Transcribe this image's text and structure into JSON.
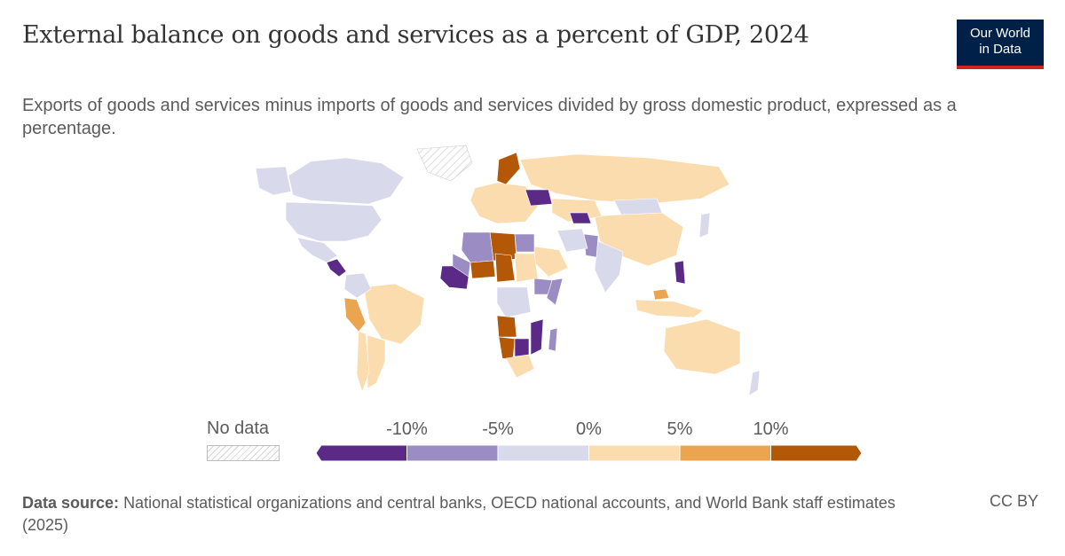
{
  "title": "External balance on goods and services as a percent of GDP, 2024",
  "subtitle": "Exports of goods and services minus imports of goods and services divided by gross domestic product, expressed as a percentage.",
  "logo": {
    "line1": "Our World",
    "line2": "in Data"
  },
  "legend": {
    "no_data_label": "No data",
    "tick_labels": [
      "-10%",
      "-5%",
      "0%",
      "5%",
      "10%"
    ],
    "bins": [
      {
        "range": "< -10%",
        "color": "#5b2a86"
      },
      {
        "range": "-10% to -5%",
        "color": "#9b8cc4"
      },
      {
        "range": "-5% to 0%",
        "color": "#d9d9ec"
      },
      {
        "range": "0% to 5%",
        "color": "#fbdcae"
      },
      {
        "range": "5% to 10%",
        "color": "#eba450"
      },
      {
        "range": "> 10%",
        "color": "#b35806"
      }
    ]
  },
  "footer": {
    "source_label": "Data source:",
    "source_text": "National statistical organizations and central banks, OECD national accounts, and World Bank staff estimates (2025)",
    "license": "CC BY"
  },
  "map_regions": [
    {
      "name": "Canada",
      "bin": 2
    },
    {
      "name": "United States",
      "bin": 2
    },
    {
      "name": "Alaska",
      "bin": 2
    },
    {
      "name": "Mexico",
      "bin": 2
    },
    {
      "name": "Central America",
      "bin": 0
    },
    {
      "name": "Brazil",
      "bin": 3
    },
    {
      "name": "Peru",
      "bin": 4
    },
    {
      "name": "Argentina",
      "bin": 3
    },
    {
      "name": "Chile",
      "bin": 3
    },
    {
      "name": "Colombia",
      "bin": 2
    },
    {
      "name": "Russia",
      "bin": 3
    },
    {
      "name": "China",
      "bin": 3
    },
    {
      "name": "Mongolia",
      "bin": 2
    },
    {
      "name": "Kazakhstan",
      "bin": 3
    },
    {
      "name": "Uzbekistan",
      "bin": 0
    },
    {
      "name": "India",
      "bin": 2
    },
    {
      "name": "Pakistan",
      "bin": 1
    },
    {
      "name": "Saudi Arabia",
      "bin": 3
    },
    {
      "name": "Iran",
      "bin": 2
    },
    {
      "name": "Egypt",
      "bin": 1
    },
    {
      "name": "Libya",
      "bin": 5
    },
    {
      "name": "Algeria",
      "bin": 1
    },
    {
      "name": "Niger",
      "bin": 5
    },
    {
      "name": "Chad",
      "bin": 5
    },
    {
      "name": "Sudan",
      "bin": 3
    },
    {
      "name": "Mali",
      "bin": 1
    },
    {
      "name": "West Africa",
      "bin": 0
    },
    {
      "name": "Ethiopia",
      "bin": 1
    },
    {
      "name": "Somalia",
      "bin": 1
    },
    {
      "name": "DR Congo",
      "bin": 2
    },
    {
      "name": "Angola",
      "bin": 5
    },
    {
      "name": "Namibia",
      "bin": 5
    },
    {
      "name": "Botswana",
      "bin": 0
    },
    {
      "name": "Mozambique",
      "bin": 0
    },
    {
      "name": "South Africa",
      "bin": 3
    },
    {
      "name": "Madagascar",
      "bin": 1
    },
    {
      "name": "Europe",
      "bin": 3
    },
    {
      "name": "Norway",
      "bin": 5
    },
    {
      "name": "Ukraine",
      "bin": 0
    },
    {
      "name": "Philippines",
      "bin": 0
    },
    {
      "name": "Indonesia",
      "bin": 3
    },
    {
      "name": "Malaysia",
      "bin": 4
    },
    {
      "name": "Australia",
      "bin": 3
    },
    {
      "name": "New Zealand",
      "bin": 2
    },
    {
      "name": "Japan",
      "bin": 2
    },
    {
      "name": "Greenland",
      "bin": -1
    }
  ]
}
